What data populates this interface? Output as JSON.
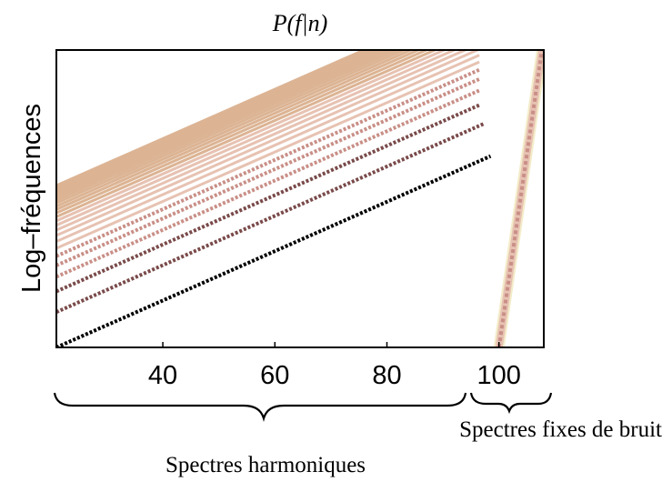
{
  "chart_data": {
    "type": "heatmap",
    "title": "P(f|n)",
    "xlabel": "",
    "ylabel": "Log–fréquences",
    "xlim": [
      21,
      108
    ],
    "ylim": [
      0,
      1
    ],
    "xticks": [
      40,
      60,
      80,
      100
    ],
    "grid": false,
    "colormap": [
      "#ffffff",
      "#f3ecc9",
      "#e7c2b2",
      "#c98f87",
      "#7a4a4a",
      "#000000"
    ],
    "harmonic_lines": {
      "x_start": 21,
      "x_end": 108,
      "count": 24,
      "slope_log_freq_per_note": 0.0083
    },
    "noise_spectrum": {
      "x": [
        100,
        108
      ]
    },
    "annotations": [
      {
        "label": "Spectres harmoniques",
        "x_range": [
          21,
          98
        ]
      },
      {
        "label": "Spectres fixes de bruit",
        "x_range": [
          99,
          108
        ]
      }
    ]
  }
}
